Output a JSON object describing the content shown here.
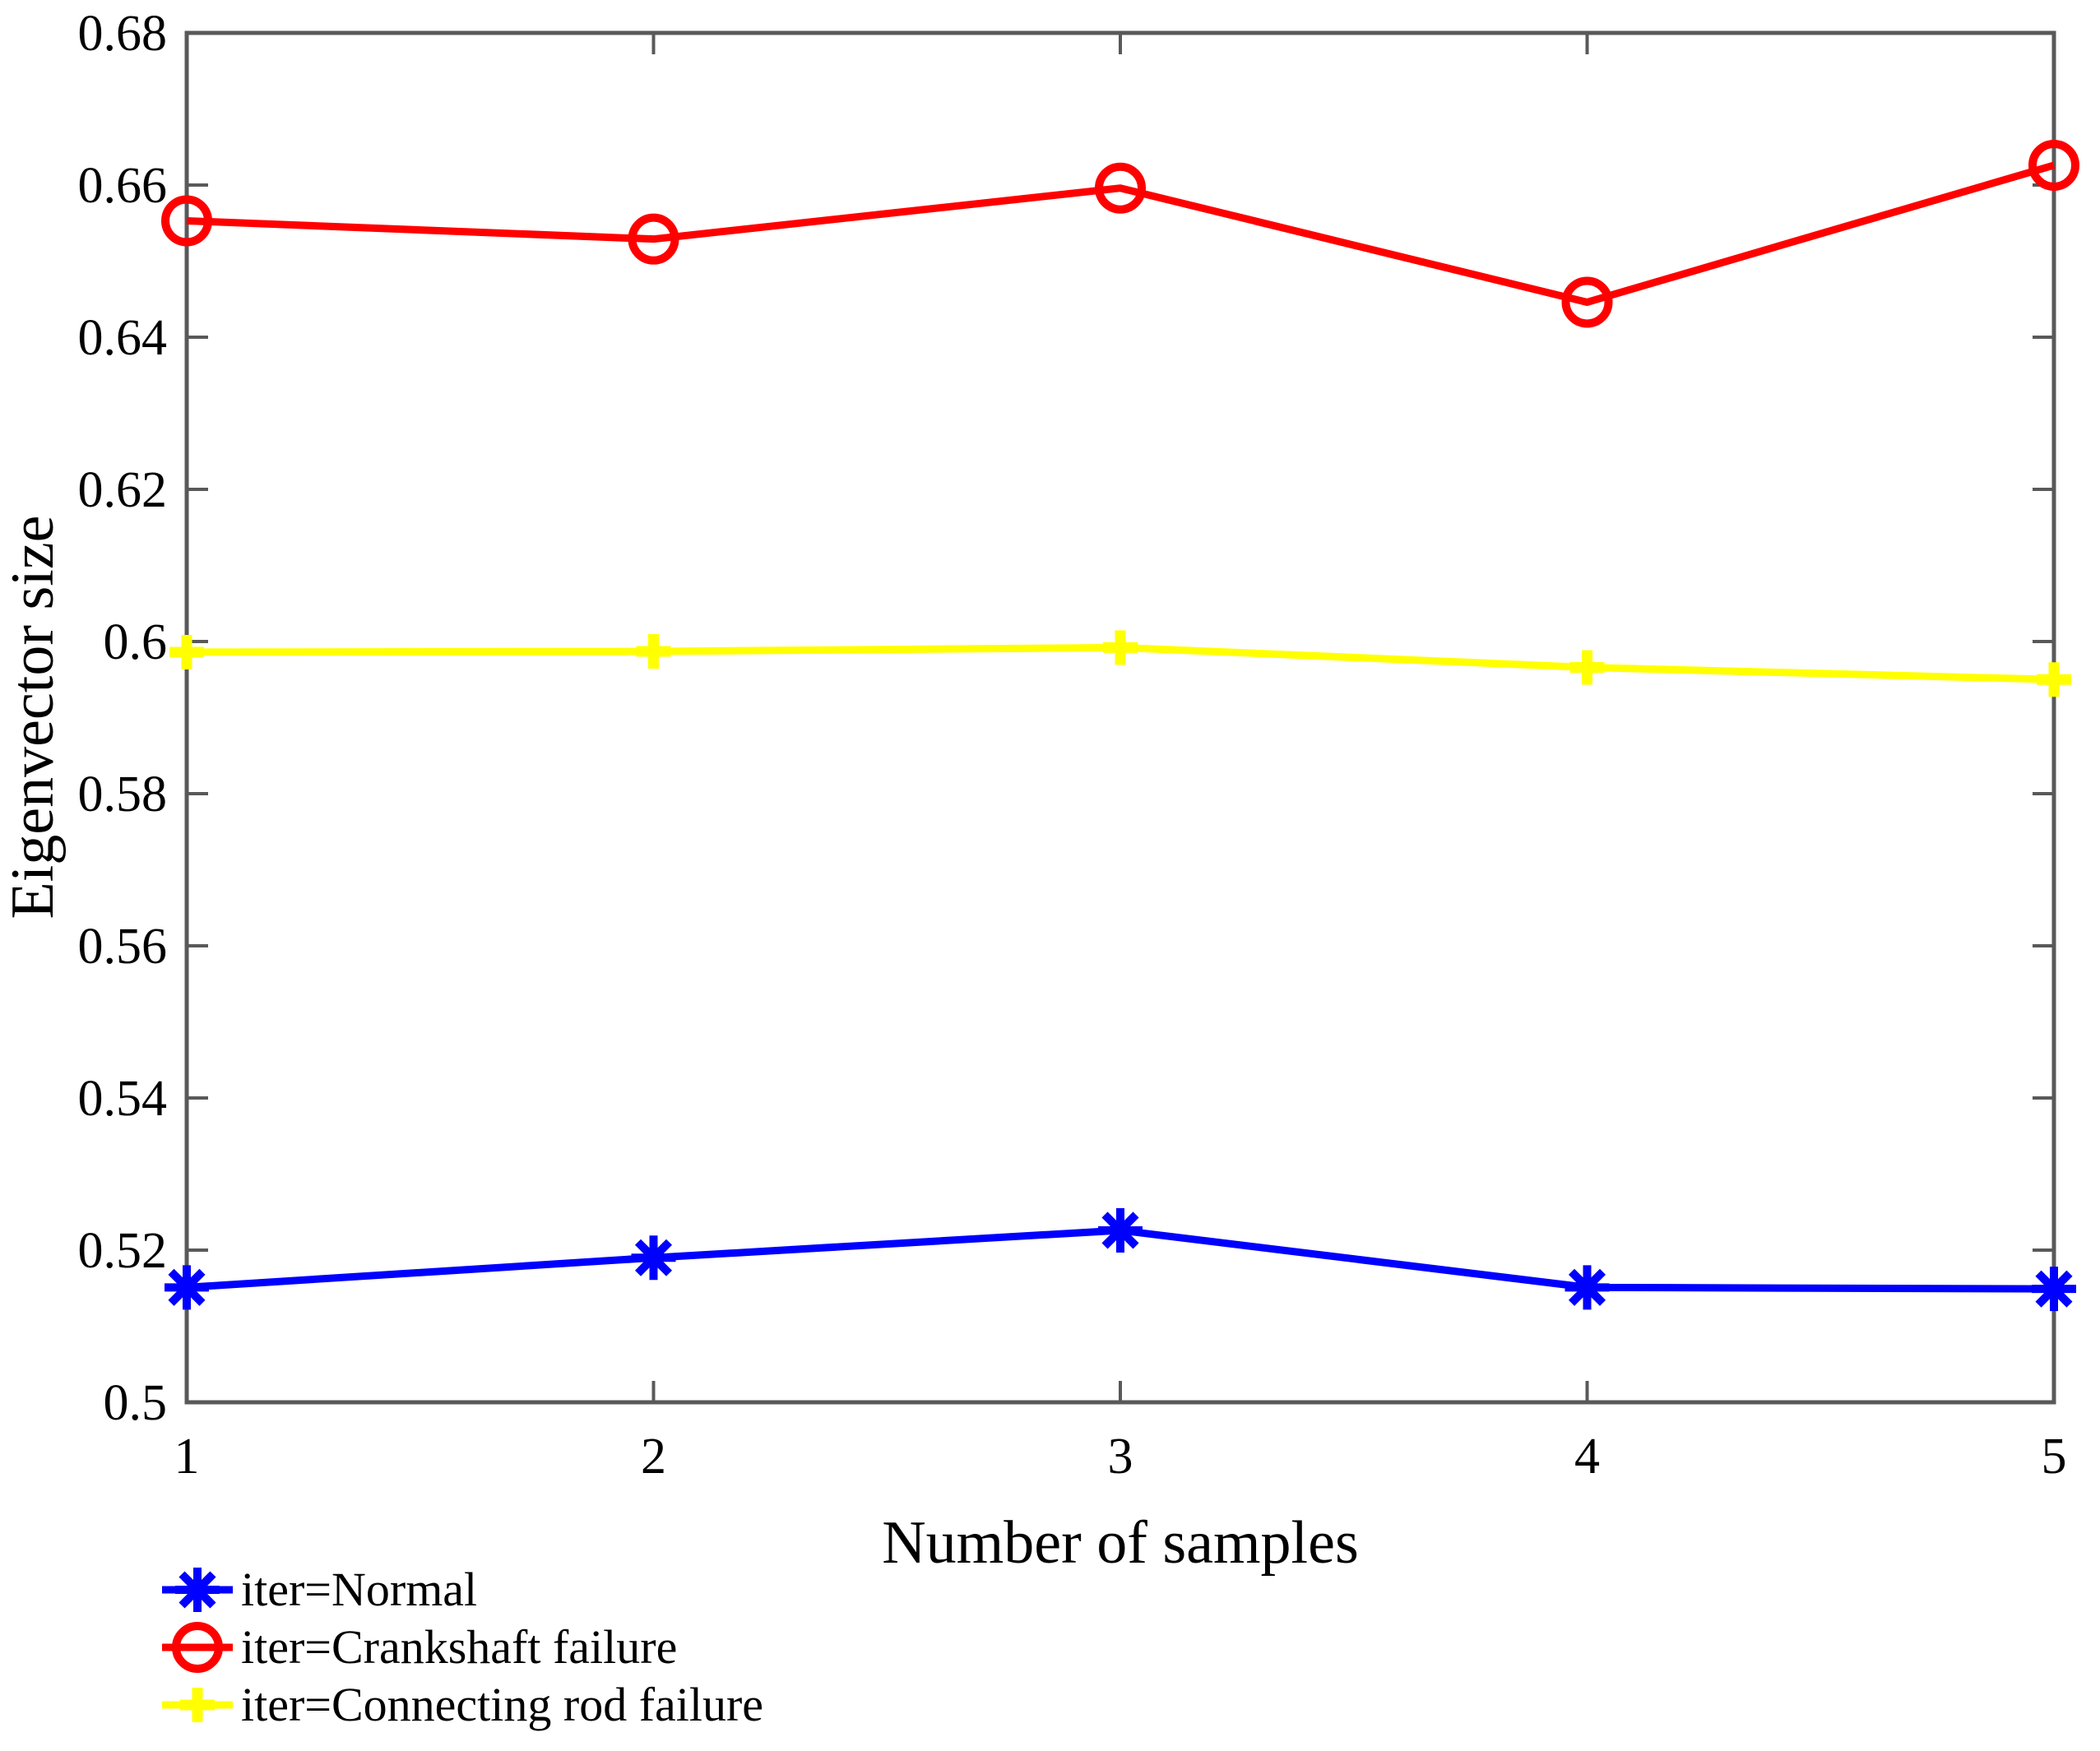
{
  "chart_data": {
    "type": "line",
    "title": "",
    "xlabel": "Number of samples",
    "ylabel": "Eigenvector size",
    "xlim": [
      1,
      5
    ],
    "ylim": [
      0.5,
      0.68
    ],
    "xticks": [
      1,
      2,
      3,
      4,
      5
    ],
    "yticks": [
      0.5,
      0.52,
      0.54,
      0.56,
      0.58,
      0.6,
      0.62,
      0.64,
      0.66,
      0.68
    ],
    "grid": false,
    "box": true,
    "axis_color": "#595959",
    "text_color": "#000000",
    "legend_position": "below-left",
    "x": [
      1,
      2,
      3,
      4,
      5
    ],
    "series": [
      {
        "name": "iter=Normal",
        "color": "#0000ff",
        "marker": "asterisk",
        "values": [
          0.5151,
          0.519,
          0.5226,
          0.5151,
          0.5149
        ]
      },
      {
        "name": "iter=Crankshaft failure",
        "color": "#ff0000",
        "marker": "circle",
        "values": [
          0.6553,
          0.6529,
          0.6596,
          0.6446,
          0.6626
        ]
      },
      {
        "name": "iter=Connecting rod failure",
        "color": "#ffff00",
        "marker": "plus",
        "values": [
          0.5986,
          0.5987,
          0.5992,
          0.5966,
          0.595
        ]
      }
    ]
  }
}
